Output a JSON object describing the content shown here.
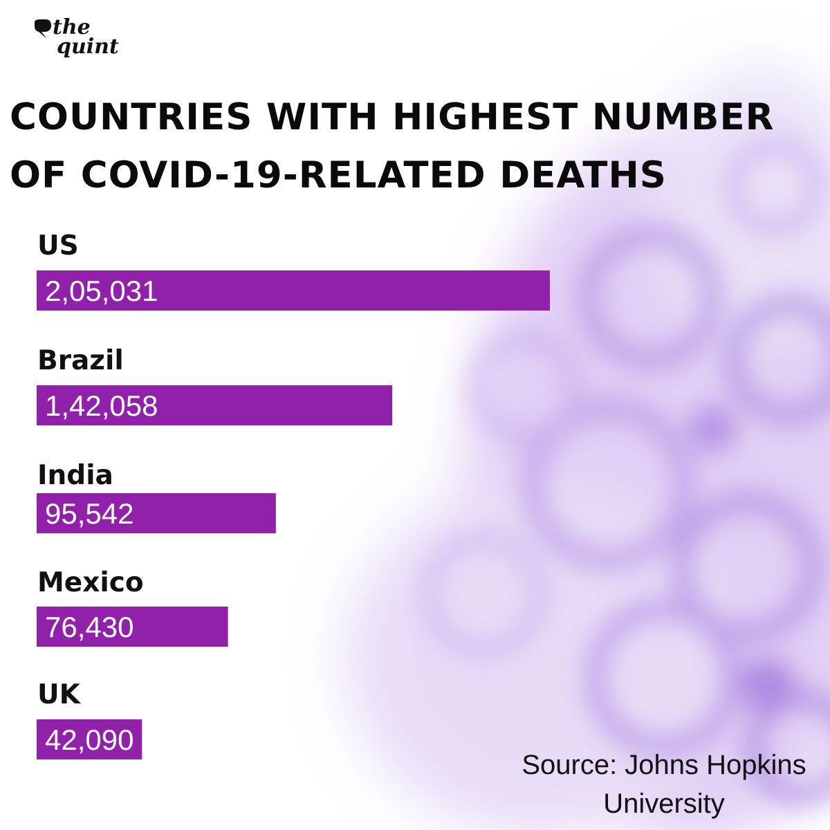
{
  "brand": {
    "line1": "the",
    "line2": "quint"
  },
  "colors": {
    "bar": "#9120aa",
    "text": "#111111",
    "value_text": "#ffffff"
  },
  "chart_data": {
    "type": "bar",
    "orientation": "horizontal",
    "title_lines": [
      "COUNTRIES WITH HIGHEST NUMBER",
      "OF COVID-19-RELATED DEATHS"
    ],
    "title": "COUNTRIES WITH HIGHEST NUMBER OF COVID-19-RELATED DEATHS",
    "categories": [
      "US",
      "Brazil",
      "India",
      "Mexico",
      "UK"
    ],
    "values": [
      205031,
      142058,
      95542,
      76430,
      42090
    ],
    "value_labels": [
      "2,05,031",
      "1,42,058",
      "95,542",
      "76,430",
      "42,090"
    ],
    "xlabel": "",
    "ylabel": "",
    "grid": false,
    "legend": "none",
    "source": "Source: Johns Hopkins University",
    "source_lines": [
      "Source: Johns Hopkins",
      "University"
    ]
  }
}
